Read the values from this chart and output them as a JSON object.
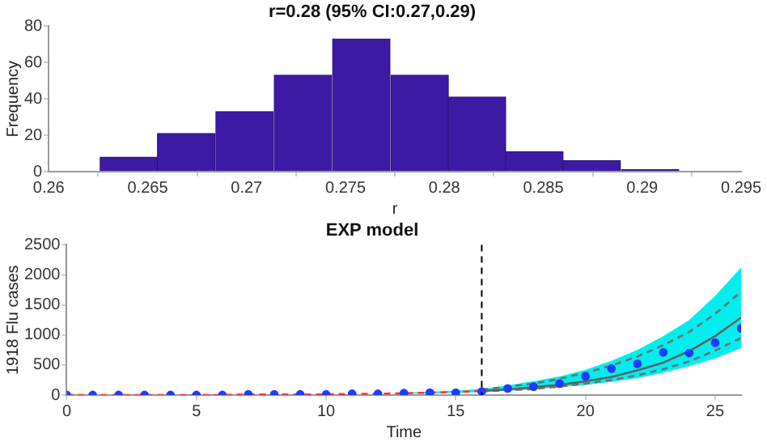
{
  "chart_data": [
    {
      "type": "histogram",
      "title": "r=0.28 (95% CI:0.27,0.29)",
      "xlabel": "r",
      "ylabel": "Frequency",
      "color": "#3d1aa3",
      "bins": [
        0.2626,
        0.2655,
        0.2684,
        0.2714,
        0.2743,
        0.2773,
        0.2802,
        0.2831,
        0.286,
        0.2889,
        0.2919
      ],
      "values": [
        8,
        21,
        33,
        53,
        73,
        53,
        41,
        11,
        6,
        1
      ],
      "xlim": [
        0.26,
        0.295
      ],
      "xticks": [
        0.26,
        0.265,
        0.27,
        0.275,
        0.28,
        0.285,
        0.29,
        0.295
      ],
      "ylim": [
        0,
        80
      ],
      "yticks": [
        0,
        20,
        40,
        60,
        80
      ]
    },
    {
      "type": "line",
      "title": "EXP model",
      "xlabel": "Time",
      "ylabel": "1918 Flu cases",
      "xlim": [
        0,
        26
      ],
      "xticks": [
        0,
        5,
        10,
        15,
        20,
        25
      ],
      "ylim": [
        0,
        2500
      ],
      "yticks": [
        0,
        500,
        1000,
        1500,
        2000,
        2500
      ],
      "ref_lines": [
        {
          "axis": "x",
          "value": 16,
          "color": "#000000",
          "line_style": "dashed"
        }
      ],
      "series": [
        {
          "type": "line",
          "color": "#00eeee",
          "marker": "none",
          "x": [
            13,
            14,
            15,
            16,
            17,
            18,
            19,
            20,
            21,
            22,
            23,
            24,
            25,
            26
          ],
          "values": [
            null,
            null,
            null,
            null,
            null,
            null,
            null,
            null,
            null,
            null,
            null,
            null,
            null,
            null
          ],
          "lower": [
            20,
            27,
            38,
            50,
            70,
            95,
            130,
            170,
            220,
            280,
            370,
            480,
            610,
            780
          ],
          "upper": [
            40,
            55,
            75,
            100,
            160,
            230,
            310,
            420,
            570,
            750,
            980,
            1250,
            1650,
            2120
          ]
        },
        {
          "type": "line",
          "color": "#707070",
          "marker": "none",
          "line_style": "dashed",
          "x": [
            16,
            17,
            18,
            19,
            20,
            21,
            22,
            23,
            24,
            25,
            26
          ],
          "values": [
            90,
            140,
            190,
            270,
            370,
            490,
            640,
            830,
            1050,
            1350,
            1720
          ]
        },
        {
          "type": "line",
          "color": "#707070",
          "marker": "none",
          "line_style": "dashed",
          "x": [
            16,
            17,
            18,
            19,
            20,
            21,
            22,
            23,
            24,
            25,
            26
          ],
          "values": [
            60,
            80,
            100,
            140,
            190,
            250,
            330,
            430,
            560,
            740,
            950
          ]
        },
        {
          "type": "line",
          "color": "#606060",
          "marker": "none",
          "x": [
            16,
            17,
            18,
            19,
            20,
            21,
            22,
            23,
            24,
            25,
            26
          ],
          "values": [
            70,
            90,
            130,
            170,
            230,
            300,
            410,
            540,
            730,
            980,
            1290
          ]
        },
        {
          "type": "line",
          "color": "#ff3030",
          "marker": "none",
          "line_style": "dashed",
          "x": [
            0,
            1,
            2,
            3,
            4,
            5,
            6,
            7,
            8,
            9,
            10,
            11,
            12,
            13,
            14,
            15,
            16
          ],
          "values": [
            0,
            0,
            0,
            0,
            0,
            0,
            0,
            10,
            10,
            10,
            10,
            20,
            20,
            30,
            40,
            50,
            70
          ]
        },
        {
          "type": "scatter",
          "color": "#1e3cff",
          "marker": "circle",
          "x": [
            0,
            1,
            2,
            3,
            4,
            5,
            6,
            7,
            8,
            9,
            10,
            11,
            12,
            13,
            14,
            15,
            16,
            17,
            18,
            19,
            20,
            21,
            22,
            23,
            24,
            25,
            26
          ],
          "values": [
            0,
            0,
            0,
            0,
            0,
            0,
            0,
            10,
            10,
            10,
            10,
            20,
            20,
            30,
            40,
            40,
            60,
            110,
            140,
            190,
            310,
            440,
            520,
            710,
            700,
            870,
            1110
          ]
        }
      ]
    }
  ]
}
